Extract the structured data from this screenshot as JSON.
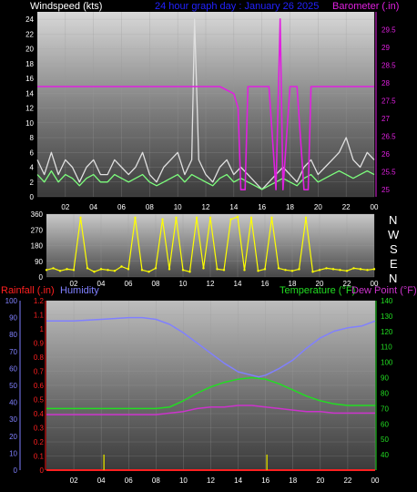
{
  "colors": {
    "wind_label": "#ffffff",
    "title": "#2222ff",
    "baro": "#e020e0",
    "gust": "#e0e0e0",
    "wind": "#7dff7d",
    "dir": "#ffff00",
    "rain": "#ff2020",
    "humidity": "#8080ff",
    "temperature": "#22dd22",
    "dewpoint": "#cc33cc",
    "rainbar": "#cccc00"
  },
  "header": {
    "wind_label": "Windspeed (kts)",
    "title": "24 hour graph day : January 26 2025",
    "baro_label": "Barometer (.in)"
  },
  "direction_labels": [
    "N",
    "W",
    "S",
    "E",
    "N"
  ],
  "bottom_labels": {
    "rain": "Rainfall (.in)",
    "humidity": "Humidity",
    "temperature": "Temperature (°F)",
    "dewpoint": "Dew Point (°F)"
  },
  "x_ticks": [
    "02",
    "04",
    "06",
    "08",
    "10",
    "12",
    "14",
    "16",
    "18",
    "20",
    "22",
    "00"
  ],
  "chart_data": [
    {
      "type": "line",
      "title": "24 hour graph day : January 26 2025",
      "x_range": [
        0,
        24
      ],
      "y_left": {
        "label": "Windspeed (kts)",
        "range": [
          0,
          25
        ],
        "ticks": [
          0,
          2,
          4,
          6,
          8,
          10,
          12,
          14,
          16,
          18,
          20,
          22,
          24
        ]
      },
      "y_right": {
        "label": "Barometer (.in)",
        "range": [
          24.8,
          30
        ],
        "ticks": [
          25,
          25.5,
          26,
          26.5,
          27,
          27.5,
          28,
          28.5,
          29,
          29.5
        ]
      },
      "series": [
        {
          "name": "Windspeed",
          "axis": "left",
          "x": [
            0,
            0.5,
            1,
            1.5,
            2,
            2.5,
            3,
            3.5,
            4,
            4.5,
            5,
            5.5,
            6,
            6.5,
            7,
            7.5,
            8,
            8.5,
            9,
            9.5,
            10,
            10.5,
            11,
            11.5,
            12,
            12.5,
            13,
            13.5,
            14,
            14.5,
            15,
            15.5,
            16,
            16.5,
            17,
            17.5,
            18,
            18.5,
            19,
            19.5,
            20,
            20.5,
            21,
            21.5,
            22,
            22.5,
            23,
            23.5,
            24
          ],
          "y": [
            3,
            2,
            3.5,
            2,
            3,
            2.5,
            1.5,
            2.5,
            3,
            2,
            2,
            3,
            2.5,
            2,
            2.5,
            3,
            2,
            1.5,
            2,
            2.5,
            3,
            2,
            3,
            2.5,
            2,
            1.5,
            2.5,
            3,
            2,
            2.5,
            2,
            1.5,
            1,
            1.5,
            2,
            2.5,
            2,
            1.5,
            2.5,
            3,
            2,
            2.5,
            3,
            3.5,
            3,
            2.5,
            3,
            3.5,
            3
          ]
        },
        {
          "name": "Gust",
          "axis": "left",
          "x": [
            0,
            0.5,
            1,
            1.5,
            2,
            2.5,
            3,
            3.5,
            4,
            4.5,
            5,
            5.5,
            6,
            6.5,
            7,
            7.5,
            8,
            8.5,
            9,
            9.5,
            10,
            10.5,
            11,
            11.2,
            11.5,
            12,
            12.5,
            13,
            13.5,
            14,
            14.5,
            15,
            15.5,
            16,
            16.5,
            17,
            17.5,
            18,
            18.5,
            19,
            19.5,
            20,
            20.5,
            21,
            21.5,
            22,
            22.5,
            23,
            23.5,
            24
          ],
          "y": [
            5,
            3,
            6,
            3,
            5,
            4,
            2,
            4,
            5,
            3,
            3,
            5,
            4,
            3,
            4,
            6,
            3,
            2,
            4,
            5,
            6,
            3,
            5,
            24,
            5,
            3,
            2,
            4,
            5,
            3,
            4,
            3,
            2,
            1,
            2,
            3,
            4,
            3,
            2,
            4,
            5,
            3,
            4,
            5,
            6,
            8,
            5,
            4,
            6,
            5
          ]
        },
        {
          "name": "Barometer",
          "axis": "right",
          "x": [
            0,
            2,
            4,
            6,
            8,
            10,
            12,
            13,
            14,
            14.3,
            14.5,
            14.8,
            15,
            16,
            16.5,
            17,
            17.3,
            17.5,
            18,
            18.5,
            19,
            19.3,
            19.5,
            20,
            21,
            22,
            23,
            24
          ],
          "y": [
            27.9,
            27.9,
            27.9,
            27.9,
            27.9,
            27.9,
            27.9,
            27.9,
            27.7,
            27.3,
            25,
            25,
            27.9,
            27.9,
            27.9,
            25,
            29.8,
            25,
            27.9,
            27.9,
            25,
            25,
            27.9,
            27.9,
            27.9,
            27.9,
            27.9,
            27.9
          ]
        }
      ]
    },
    {
      "type": "scatter",
      "title": "",
      "x_range": [
        0,
        24
      ],
      "y_range": [
        0,
        360
      ],
      "y_ticks": [
        0,
        90,
        180,
        270,
        360
      ],
      "series": [
        {
          "name": "Wind Direction",
          "x": [
            0,
            0.5,
            1,
            1.5,
            2,
            2.5,
            3,
            3.5,
            4,
            4.5,
            5,
            5.5,
            6,
            6.5,
            7,
            7.5,
            8,
            8.5,
            9,
            9.5,
            10,
            10.5,
            11,
            11.5,
            12,
            12.5,
            13,
            13.5,
            14,
            14.5,
            15,
            15.5,
            16,
            16.5,
            17,
            17.5,
            18,
            18.5,
            19,
            19.5,
            20,
            20.5,
            21,
            21.5,
            22,
            22.5,
            23,
            23.5,
            24
          ],
          "y": [
            40,
            50,
            35,
            45,
            40,
            340,
            50,
            30,
            45,
            40,
            35,
            60,
            45,
            340,
            40,
            30,
            50,
            330,
            45,
            340,
            40,
            30,
            340,
            50,
            340,
            45,
            40,
            330,
            345,
            40,
            340,
            35,
            45,
            340,
            50,
            40,
            35,
            45,
            340,
            30,
            40,
            50,
            45,
            40,
            35,
            50,
            45,
            40,
            45
          ]
        }
      ]
    },
    {
      "type": "line",
      "title": "",
      "x_range": [
        0,
        24
      ],
      "y_left_outer": {
        "label": "Humidity",
        "range": [
          0,
          100
        ],
        "ticks": [
          0,
          10,
          20,
          30,
          40,
          50,
          60,
          70,
          80,
          90,
          100
        ]
      },
      "y_left_inner": {
        "label": "Rainfall (.in)",
        "range": [
          0,
          1.2
        ],
        "ticks": [
          0,
          0.1,
          0.2,
          0.3,
          0.4,
          0.5,
          0.6,
          0.7,
          0.8,
          0.9,
          1,
          1.1,
          1.2
        ]
      },
      "y_right": {
        "label": "Temperature (°F)",
        "range": [
          30,
          140
        ],
        "ticks": [
          40,
          50,
          60,
          70,
          80,
          90,
          100,
          110,
          120,
          130,
          140
        ]
      },
      "series": [
        {
          "name": "Humidity",
          "axis": "left_outer",
          "x": [
            0,
            2,
            4,
            6,
            7,
            8,
            9,
            10,
            11,
            12,
            13,
            14,
            15,
            15.5,
            16,
            17,
            18,
            19,
            20,
            21,
            22,
            23,
            24
          ],
          "y": [
            88,
            88,
            89,
            90,
            90,
            89,
            86,
            81,
            75,
            69,
            63,
            58,
            56,
            55,
            56,
            60,
            65,
            72,
            78,
            82,
            84,
            85,
            88
          ]
        },
        {
          "name": "Rainfall",
          "axis": "left_inner",
          "x": [
            0,
            6,
            12,
            18,
            24
          ],
          "y": [
            0,
            0,
            0,
            0,
            0
          ]
        },
        {
          "name": "Temperature",
          "axis": "right",
          "x": [
            0,
            2,
            4,
            6,
            8,
            9,
            10,
            11,
            12,
            13,
            14,
            15,
            16,
            17,
            18,
            19,
            20,
            21,
            22,
            23,
            24
          ],
          "y": [
            70,
            70,
            70,
            70,
            70,
            71,
            75,
            80,
            84,
            87,
            89,
            90,
            89,
            86,
            82,
            78,
            75,
            73,
            72,
            72,
            72
          ]
        },
        {
          "name": "Dew Point",
          "axis": "right",
          "x": [
            0,
            2,
            4,
            6,
            8,
            9,
            10,
            11,
            12,
            13,
            14,
            15,
            16,
            17,
            18,
            19,
            20,
            21,
            22,
            23,
            24
          ],
          "y": [
            66,
            66,
            66,
            66,
            66,
            67,
            68,
            70,
            71,
            71,
            72,
            72,
            71,
            70,
            69,
            68,
            68,
            67,
            67,
            67,
            67
          ]
        },
        {
          "name": "Rain Rate",
          "axis": "left_inner",
          "x": [
            4.2,
            16.1
          ],
          "y": [
            0.11,
            0.11
          ]
        }
      ]
    }
  ]
}
